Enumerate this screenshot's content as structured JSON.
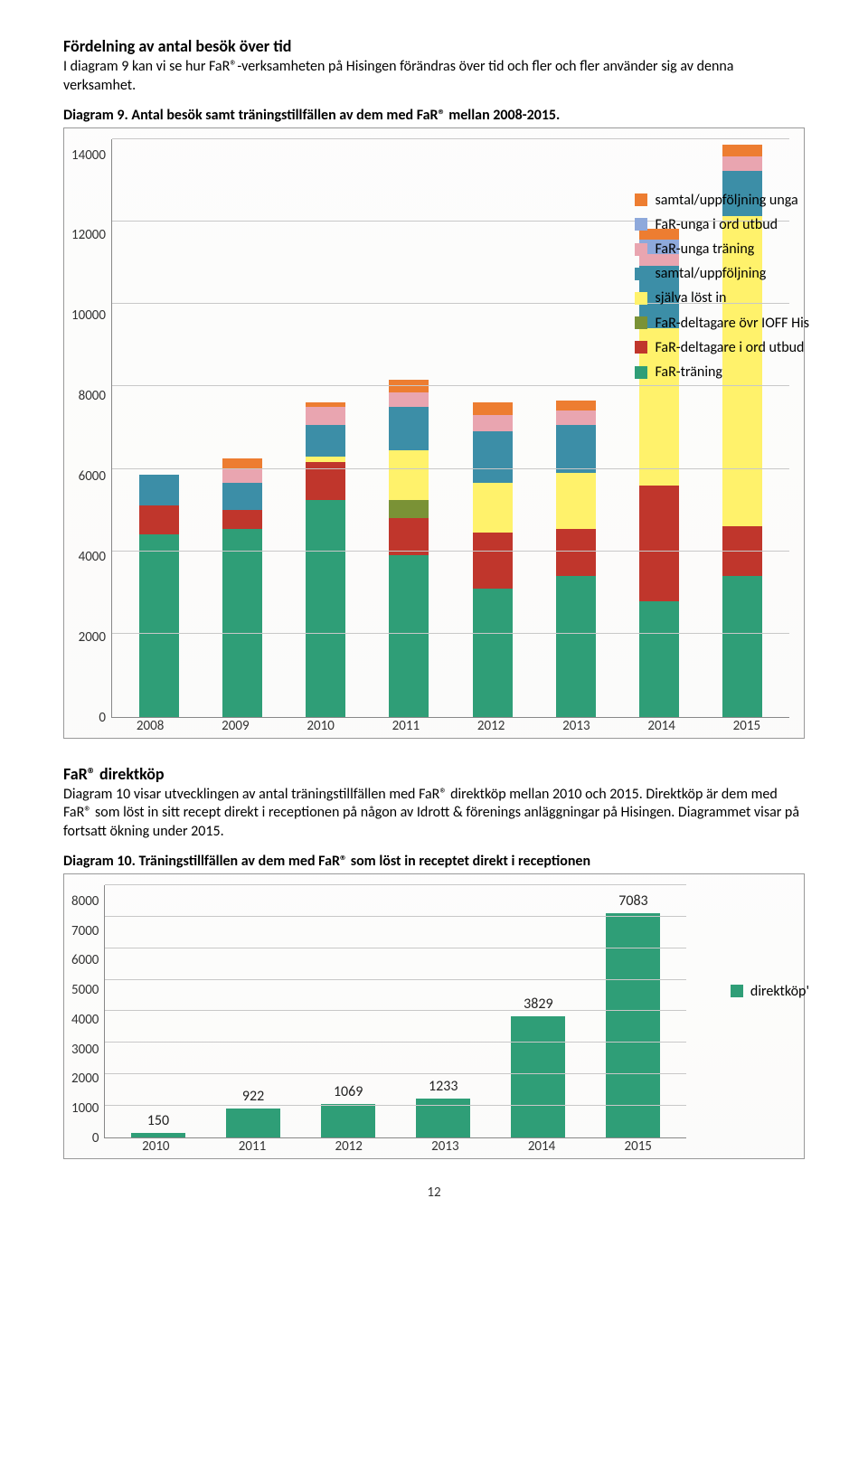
{
  "section1": {
    "title": "Fördelning av antal besök över tid",
    "body": "I diagram 9 kan vi se hur FaR®-verksamheten på Hisingen förändras över tid och fler och fler använder sig av denna verksamhet.",
    "caption": "Diagram 9. Antal besök samt träningstillfällen av dem med FaR® mellan 2008-2015."
  },
  "chart1": {
    "type": "stacked-bar",
    "ymax": 14000,
    "ystep": 2000,
    "yticks": [
      0,
      2000,
      4000,
      6000,
      8000,
      10000,
      12000,
      14000
    ],
    "categories": [
      "2008",
      "2009",
      "2010",
      "2011",
      "2012",
      "2013",
      "2014",
      "2015"
    ],
    "series_order": [
      "far_traning",
      "far_delt_ord",
      "far_delt_ioff",
      "sjalva_lost",
      "samtal_upp",
      "far_unga_tr",
      "far_unga_ord",
      "samtal_unga"
    ],
    "colors": {
      "samtal_unga": "#ed7d31",
      "far_unga_ord": "#8ea9db",
      "far_unga_tr": "#e9a5b0",
      "samtal_upp": "#3c8ea7",
      "sjalva_lost": "#fff26b",
      "far_delt_ioff": "#7a9236",
      "far_delt_ord": "#c0362c",
      "far_traning": "#2f9e77"
    },
    "legend": [
      {
        "key": "samtal_unga",
        "label": "samtal/uppföljning unga"
      },
      {
        "key": "far_unga_ord",
        "label": "FaR-unga i ord utbud"
      },
      {
        "key": "far_unga_tr",
        "label": "FaR-unga träning"
      },
      {
        "key": "samtal_upp",
        "label": "samtal/uppföljning"
      },
      {
        "key": "sjalva_lost",
        "label": "själva löst in"
      },
      {
        "key": "far_delt_ioff",
        "label": "FaR-deltagare övr IOFF His"
      },
      {
        "key": "far_delt_ord",
        "label": "FaR-deltagare i ord utbud"
      },
      {
        "key": "far_traning",
        "label": "FaR-träning"
      }
    ],
    "data": {
      "2008": {
        "far_traning": 4400,
        "far_delt_ord": 700,
        "far_delt_ioff": 0,
        "sjalva_lost": 0,
        "samtal_upp": 750,
        "far_unga_tr": 0,
        "far_unga_ord": 0,
        "samtal_unga": 0
      },
      "2009": {
        "far_traning": 4550,
        "far_delt_ord": 450,
        "far_delt_ioff": 0,
        "sjalva_lost": 0,
        "samtal_upp": 650,
        "far_unga_tr": 350,
        "far_unga_ord": 0,
        "samtal_unga": 250
      },
      "2010": {
        "far_traning": 5250,
        "far_delt_ord": 900,
        "far_delt_ioff": 0,
        "sjalva_lost": 150,
        "samtal_upp": 750,
        "far_unga_tr": 450,
        "far_unga_ord": 0,
        "samtal_unga": 100
      },
      "2011": {
        "far_traning": 3900,
        "far_delt_ord": 900,
        "far_delt_ioff": 450,
        "sjalva_lost": 1200,
        "samtal_upp": 1050,
        "far_unga_tr": 350,
        "far_unga_ord": 0,
        "samtal_unga": 300
      },
      "2012": {
        "far_traning": 3100,
        "far_delt_ord": 1350,
        "far_delt_ioff": 0,
        "sjalva_lost": 1200,
        "samtal_upp": 1250,
        "far_unga_tr": 400,
        "far_unga_ord": 0,
        "samtal_unga": 300
      },
      "2013": {
        "far_traning": 3400,
        "far_delt_ord": 1150,
        "far_delt_ioff": 0,
        "sjalva_lost": 1350,
        "samtal_upp": 1150,
        "far_unga_tr": 350,
        "far_unga_ord": 0,
        "samtal_unga": 250
      },
      "2014": {
        "far_traning": 2800,
        "far_delt_ord": 2800,
        "far_delt_ioff": 0,
        "sjalva_lost": 3800,
        "samtal_upp": 1500,
        "far_unga_tr": 300,
        "far_unga_ord": 350,
        "samtal_unga": 250
      },
      "2015": {
        "far_traning": 3400,
        "far_delt_ord": 1200,
        "far_delt_ioff": 0,
        "sjalva_lost": 7500,
        "samtal_upp": 1100,
        "far_unga_tr": 350,
        "far_unga_ord": 0,
        "samtal_unga": 300
      }
    },
    "grid_color": "#c8c8c8",
    "axis_font": 15
  },
  "section2": {
    "title": "FaR® direktköp",
    "body": "Diagram 10 visar utvecklingen av antal träningstillfällen med FaR® direktköp mellan 2010 och 2015. Direktköp är dem med FaR® som löst in sitt recept direkt i receptionen på någon av Idrott & förenings anläggningar på Hisingen. Diagrammet visar på fortsatt ökning under 2015.",
    "caption": "Diagram 10. Träningstillfällen av dem med FaR® som löst in receptet direkt i receptionen"
  },
  "chart2": {
    "type": "bar",
    "ymax": 8000,
    "ystep": 1000,
    "yticks": [
      0,
      1000,
      2000,
      3000,
      4000,
      5000,
      6000,
      7000,
      8000
    ],
    "categories": [
      "2010",
      "2011",
      "2012",
      "2013",
      "2014",
      "2015"
    ],
    "values": [
      150,
      922,
      1069,
      1233,
      3829,
      7083
    ],
    "color": "#2f9e77",
    "legend_label": "direktköp'",
    "legend_color": "#2f9e77",
    "grid_color": "#c8c8c8"
  },
  "page_number": "12"
}
